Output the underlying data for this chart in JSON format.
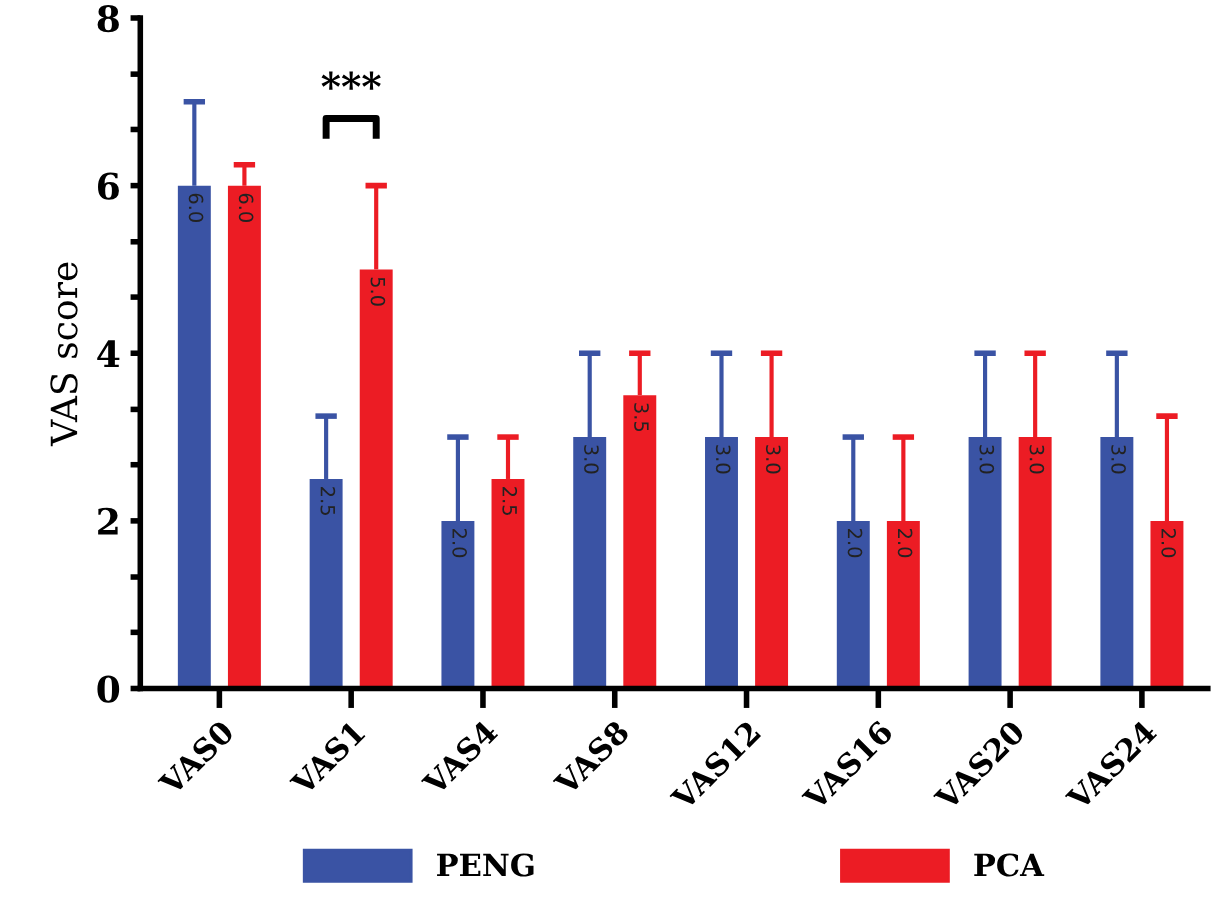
{
  "chart_data": {
    "type": "bar",
    "ylabel": "VAS score",
    "categories": [
      "VAS0",
      "VAS1",
      "VAS4",
      "VAS8",
      "VAS12",
      "VAS16",
      "VAS20",
      "VAS24"
    ],
    "series": [
      {
        "name": "PENG",
        "color": "#3a53a4",
        "values": [
          6,
          2.5,
          2,
          3,
          3,
          2,
          3,
          3
        ],
        "value_labels": [
          "6.0",
          "2.5",
          "2.0",
          "3.0",
          "3.0",
          "2.0",
          "3.0",
          "3.0"
        ],
        "errors": [
          [
            6,
            7
          ],
          [
            2.5,
            3.25
          ],
          [
            2,
            3
          ],
          [
            3,
            4
          ],
          [
            3,
            4
          ],
          [
            2,
            3
          ],
          [
            3,
            4
          ],
          [
            3,
            4
          ]
        ]
      },
      {
        "name": "PCA",
        "color": "#ec1c24",
        "values": [
          6,
          5,
          2.5,
          3.5,
          3,
          2,
          3,
          2
        ],
        "value_labels": [
          "6.0",
          "5.0",
          "2.5",
          "3.5",
          "3.0",
          "2.0",
          "3.0",
          "2.0"
        ],
        "errors": [
          [
            6,
            6.25
          ],
          [
            5,
            6
          ],
          [
            2.5,
            3
          ],
          [
            3.5,
            4
          ],
          [
            3,
            4
          ],
          [
            2,
            3
          ],
          [
            3,
            4
          ],
          [
            2,
            3.25
          ]
        ]
      }
    ],
    "ylim": [
      0,
      8
    ],
    "yticks": [
      0,
      {
        "value": 0.67,
        "label": null
      },
      {
        "value": 1.33,
        "label": null
      },
      2,
      {
        "value": 2.67,
        "label": null
      },
      {
        "value": 3.33,
        "label": null
      },
      4,
      {
        "value": 4.67,
        "label": null
      },
      {
        "value": 5.33,
        "label": null
      },
      6,
      {
        "value": 6.67,
        "label": null
      },
      {
        "value": 7.33,
        "label": null
      },
      8
    ],
    "annotations": [
      "***"
    ],
    "legend": "bottom",
    "grid": false
  }
}
